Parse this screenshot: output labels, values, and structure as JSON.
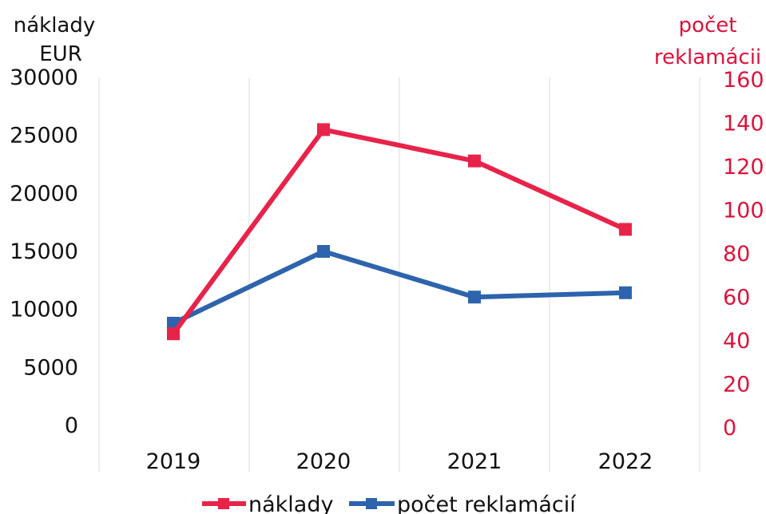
{
  "chart_data": {
    "type": "line",
    "categories": [
      "2019",
      "2020",
      "2021",
      "2022"
    ],
    "y_left": {
      "label_lines": [
        "náklady",
        "EUR"
      ],
      "ticks": [
        0,
        5000,
        10000,
        15000,
        20000,
        25000,
        30000
      ],
      "range": [
        0,
        30000
      ]
    },
    "y_right": {
      "label_lines": [
        "počet",
        "reklamácii"
      ],
      "ticks": [
        0,
        20,
        40,
        60,
        80,
        100,
        120,
        140,
        160
      ],
      "range": [
        0,
        160
      ],
      "color": "#dc143c"
    },
    "series": [
      {
        "name": "náklady",
        "axis": "left",
        "color": "#e8234a",
        "values": [
          7900,
          25500,
          22800,
          16900
        ]
      },
      {
        "name": "počet reklamácií",
        "axis": "right",
        "color": "#2e63ad",
        "values": [
          47,
          80,
          59,
          61
        ]
      }
    ],
    "grid": "vertical",
    "legend": "bottom"
  }
}
